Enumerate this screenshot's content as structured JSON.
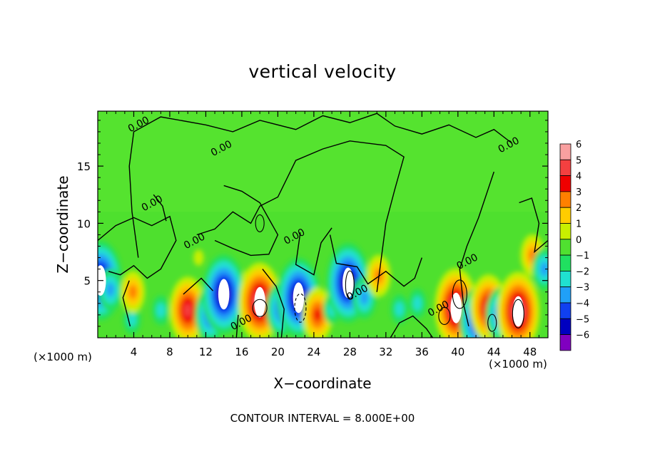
{
  "chart_data": {
    "type": "heatmap",
    "title": "vertical velocity",
    "xlabel": "X−coordinate",
    "ylabel": "Z−coordinate",
    "x_unit": "(×1000 m)",
    "footer": "CONTOUR INTERVAL = 8.000E+00",
    "xlim": [
      0,
      50
    ],
    "ylim": [
      0,
      19.8
    ],
    "xticks": [
      4,
      8,
      12,
      16,
      20,
      24,
      28,
      32,
      36,
      40,
      44,
      48
    ],
    "yticks": [
      5,
      10,
      15
    ],
    "colorbar": {
      "levels": [
        6,
        5,
        4,
        3,
        2,
        1,
        0,
        -1,
        -2,
        -3,
        -4,
        -5,
        -6
      ],
      "labels": [
        "6",
        "5",
        "4",
        "3",
        "2",
        "1",
        "0",
        "−1",
        "−2",
        "−3",
        "−4",
        "−5",
        "−6"
      ],
      "colors": [
        "#f9a0a0",
        "#f44040",
        "#f00000",
        "#ff8000",
        "#ffcc00",
        "#c8f000",
        "#50e030",
        "#20e060",
        "#20e0d0",
        "#20a0f8",
        "#1040f0",
        "#0000c0",
        "#8000c0"
      ]
    },
    "contour_labels": [
      {
        "text": "0.00",
        "x": 4.7,
        "z": 18.4
      },
      {
        "text": "0.00",
        "x": 13.9,
        "z": 16.3
      },
      {
        "text": "0.00",
        "x": 6.2,
        "z": 11.5
      },
      {
        "text": "0.00",
        "x": 10.9,
        "z": 8.2
      },
      {
        "text": "0.00",
        "x": 16.1,
        "z": 1.1
      },
      {
        "text": "0.00",
        "x": 22.0,
        "z": 8.6
      },
      {
        "text": "0.00",
        "x": 29.0,
        "z": 3.7
      },
      {
        "text": "0.00",
        "x": 38.0,
        "z": 2.3
      },
      {
        "text": "0.00",
        "x": 41.2,
        "z": 6.4
      },
      {
        "text": "0.00",
        "x": 45.8,
        "z": 16.6
      }
    ],
    "features": [
      {
        "x": 0.3,
        "z": 5.0,
        "w": -6
      },
      {
        "x": 1.4,
        "z": 4.2,
        "w": -3
      },
      {
        "x": 3.8,
        "z": 1.6,
        "w": -2
      },
      {
        "x": 3.9,
        "z": 4.0,
        "w": 3
      },
      {
        "x": 7.0,
        "z": 2.4,
        "w": -2
      },
      {
        "x": 10.0,
        "z": 2.4,
        "w": 5
      },
      {
        "x": 11.2,
        "z": 7.0,
        "w": 1
      },
      {
        "x": 12.5,
        "z": 2.0,
        "w": -4
      },
      {
        "x": 14.0,
        "z": 3.8,
        "w": -6
      },
      {
        "x": 16.6,
        "z": 5.2,
        "w": 1
      },
      {
        "x": 18.0,
        "z": 3.1,
        "w": 6
      },
      {
        "x": 20.4,
        "z": 2.5,
        "w": -4
      },
      {
        "x": 22.3,
        "z": 3.5,
        "w": -6
      },
      {
        "x": 24.4,
        "z": 2.0,
        "w": 4
      },
      {
        "x": 26.0,
        "z": 2.5,
        "w": -2
      },
      {
        "x": 27.8,
        "z": 4.8,
        "w": -6
      },
      {
        "x": 29.6,
        "z": 3.5,
        "w": -3
      },
      {
        "x": 31.2,
        "z": 5.4,
        "w": 3
      },
      {
        "x": 33.5,
        "z": 2.5,
        "w": -2
      },
      {
        "x": 35.5,
        "z": 3.0,
        "w": -2
      },
      {
        "x": 39.8,
        "z": 2.6,
        "w": 6
      },
      {
        "x": 42.2,
        "z": 1.5,
        "w": -5
      },
      {
        "x": 43.4,
        "z": 2.6,
        "w": 5
      },
      {
        "x": 44.8,
        "z": 2.0,
        "w": -4
      },
      {
        "x": 46.7,
        "z": 2.3,
        "w": 6
      },
      {
        "x": 48.3,
        "z": 7.2,
        "w": 3
      },
      {
        "x": 49.6,
        "z": 6.0,
        "w": -3
      }
    ]
  }
}
